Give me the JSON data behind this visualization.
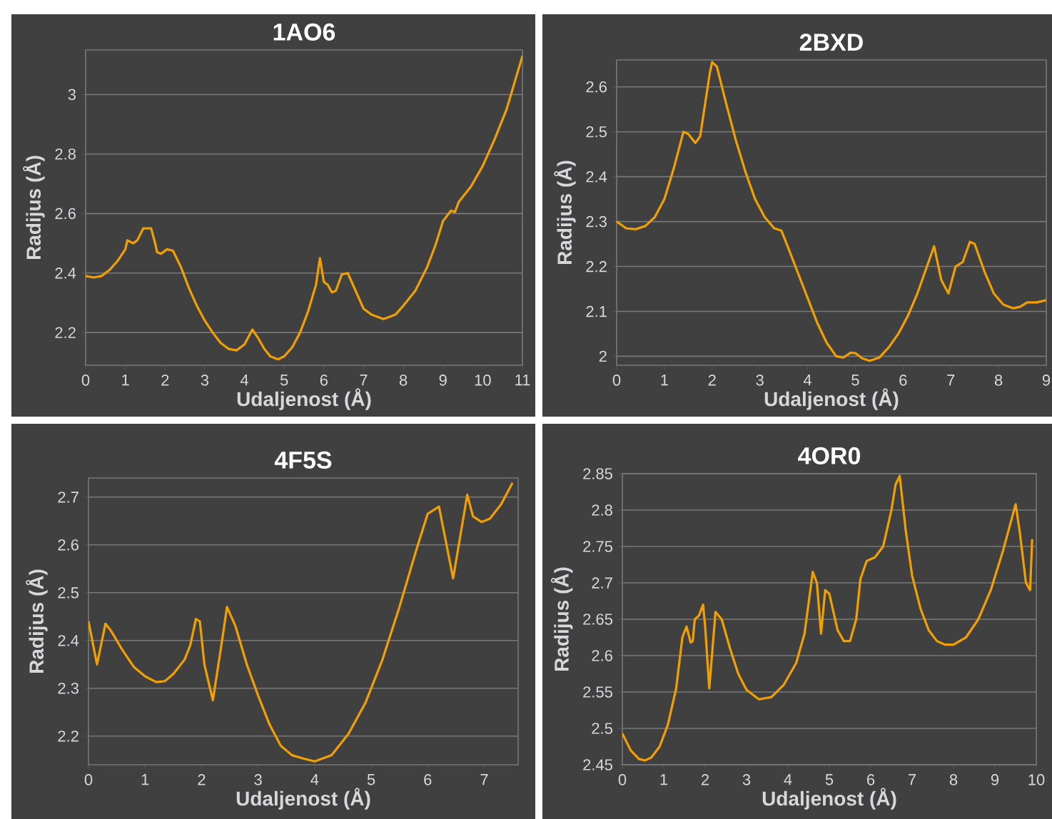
{
  "chart_data": [
    {
      "type": "line",
      "title": "1AO6",
      "xlabel": "Udaljenost (Å)",
      "ylabel": "Radijus (Å)",
      "grid": "y",
      "xlim": [
        0,
        11
      ],
      "ylim": [
        2.09,
        3.15
      ],
      "xticks": [
        0,
        1,
        2,
        3,
        4,
        5,
        6,
        7,
        8,
        9,
        10,
        11
      ],
      "yticks": [
        2.2,
        2.4,
        2.6,
        2.8,
        3
      ],
      "x": [
        0,
        0.2,
        0.4,
        0.6,
        0.8,
        1.0,
        1.05,
        1.2,
        1.3,
        1.45,
        1.65,
        1.75,
        1.8,
        1.9,
        2.05,
        2.2,
        2.4,
        2.6,
        2.8,
        3.0,
        3.2,
        3.4,
        3.6,
        3.8,
        4.0,
        4.2,
        4.35,
        4.5,
        4.65,
        4.85,
        5.0,
        5.2,
        5.4,
        5.6,
        5.8,
        5.9,
        6.0,
        6.1,
        6.2,
        6.3,
        6.45,
        6.6,
        6.8,
        7.0,
        7.2,
        7.5,
        7.8,
        8.0,
        8.3,
        8.6,
        8.8,
        9.0,
        9.2,
        9.3,
        9.4,
        9.7,
        10.0,
        10.3,
        10.6,
        11.0
      ],
      "series": [
        {
          "color": "#f0a000",
          "values": [
            2.39,
            2.385,
            2.39,
            2.41,
            2.44,
            2.48,
            2.51,
            2.5,
            2.51,
            2.55,
            2.55,
            2.5,
            2.47,
            2.465,
            2.48,
            2.475,
            2.42,
            2.35,
            2.29,
            2.24,
            2.2,
            2.165,
            2.145,
            2.14,
            2.16,
            2.21,
            2.18,
            2.145,
            2.12,
            2.11,
            2.12,
            2.15,
            2.2,
            2.27,
            2.36,
            2.45,
            2.37,
            2.36,
            2.335,
            2.34,
            2.395,
            2.4,
            2.34,
            2.28,
            2.26,
            2.245,
            2.26,
            2.29,
            2.34,
            2.42,
            2.49,
            2.575,
            2.61,
            2.605,
            2.64,
            2.69,
            2.76,
            2.85,
            2.95,
            3.13
          ]
        }
      ]
    },
    {
      "type": "line",
      "title": "2BXD",
      "xlabel": "Udaljenost (Å)",
      "ylabel": "Radijus (Å)",
      "grid": "y",
      "xlim": [
        0,
        9
      ],
      "ylim": [
        1.98,
        2.66
      ],
      "xticks": [
        0,
        1,
        2,
        3,
        4,
        5,
        6,
        7,
        8,
        9
      ],
      "yticks": [
        2,
        2.1,
        2.2,
        2.3,
        2.4,
        2.5,
        2.6
      ],
      "x": [
        0,
        0.2,
        0.4,
        0.6,
        0.8,
        1.0,
        1.2,
        1.4,
        1.5,
        1.65,
        1.75,
        1.85,
        1.95,
        2.0,
        2.1,
        2.3,
        2.5,
        2.7,
        2.9,
        3.1,
        3.3,
        3.45,
        3.6,
        3.8,
        4.0,
        4.2,
        4.4,
        4.6,
        4.75,
        4.9,
        5.0,
        5.15,
        5.3,
        5.5,
        5.7,
        5.9,
        6.1,
        6.3,
        6.5,
        6.65,
        6.8,
        6.95,
        7.1,
        7.25,
        7.4,
        7.5,
        7.7,
        7.9,
        8.1,
        8.3,
        8.45,
        8.6,
        8.8,
        9.0
      ],
      "series": [
        {
          "color": "#f0a000",
          "values": [
            2.3,
            2.285,
            2.283,
            2.29,
            2.31,
            2.35,
            2.42,
            2.5,
            2.495,
            2.475,
            2.49,
            2.56,
            2.63,
            2.655,
            2.645,
            2.56,
            2.48,
            2.41,
            2.35,
            2.31,
            2.285,
            2.28,
            2.24,
            2.185,
            2.13,
            2.075,
            2.03,
            2.0,
            1.997,
            2.008,
            2.007,
            1.995,
            1.99,
            1.997,
            2.02,
            2.05,
            2.09,
            2.14,
            2.2,
            2.245,
            2.17,
            2.14,
            2.2,
            2.21,
            2.255,
            2.25,
            2.19,
            2.14,
            2.115,
            2.107,
            2.11,
            2.12,
            2.12,
            2.125
          ]
        }
      ]
    },
    {
      "type": "line",
      "title": "4F5S",
      "xlabel": "Udaljenost (Å)",
      "ylabel": "Radijus (Å)",
      "grid": "y",
      "xlim": [
        0,
        7.6
      ],
      "ylim": [
        2.14,
        2.74
      ],
      "xticks": [
        0,
        1,
        2,
        3,
        4,
        5,
        6,
        7
      ],
      "yticks": [
        2.2,
        2.3,
        2.4,
        2.5,
        2.6,
        2.7
      ],
      "x": [
        0,
        0.15,
        0.3,
        0.4,
        0.6,
        0.8,
        1.0,
        1.2,
        1.35,
        1.5,
        1.7,
        1.8,
        1.9,
        1.97,
        2.05,
        2.2,
        2.35,
        2.45,
        2.6,
        2.8,
        3.0,
        3.2,
        3.4,
        3.6,
        3.8,
        4.0,
        4.3,
        4.6,
        4.9,
        5.2,
        5.5,
        5.8,
        6.0,
        6.2,
        6.3,
        6.45,
        6.55,
        6.7,
        6.8,
        6.95,
        7.1,
        7.3,
        7.5
      ],
      "series": [
        {
          "color": "#f0a000",
          "values": [
            2.44,
            2.35,
            2.435,
            2.42,
            2.38,
            2.345,
            2.325,
            2.313,
            2.315,
            2.33,
            2.36,
            2.39,
            2.445,
            2.44,
            2.35,
            2.275,
            2.39,
            2.47,
            2.43,
            2.35,
            2.285,
            2.225,
            2.18,
            2.16,
            2.153,
            2.147,
            2.16,
            2.205,
            2.27,
            2.36,
            2.47,
            2.59,
            2.665,
            2.68,
            2.62,
            2.53,
            2.6,
            2.705,
            2.66,
            2.648,
            2.655,
            2.685,
            2.73
          ]
        }
      ]
    },
    {
      "type": "line",
      "title": "4OR0",
      "xlabel": "Udaljenost (Å)",
      "ylabel": "Radijus (Å)",
      "grid": "y",
      "xlim": [
        0,
        10
      ],
      "ylim": [
        2.45,
        2.85
      ],
      "xticks": [
        0,
        1,
        2,
        3,
        4,
        5,
        6,
        7,
        8,
        9,
        10
      ],
      "yticks": [
        2.45,
        2.5,
        2.55,
        2.6,
        2.65,
        2.7,
        2.75,
        2.8,
        2.85
      ],
      "x": [
        0,
        0.2,
        0.4,
        0.55,
        0.7,
        0.9,
        1.1,
        1.3,
        1.45,
        1.55,
        1.65,
        1.7,
        1.75,
        1.85,
        1.95,
        2.0,
        2.1,
        2.25,
        2.4,
        2.6,
        2.8,
        3.0,
        3.3,
        3.6,
        3.9,
        4.2,
        4.4,
        4.6,
        4.7,
        4.8,
        4.9,
        5.0,
        5.2,
        5.35,
        5.5,
        5.65,
        5.75,
        5.9,
        6.1,
        6.3,
        6.5,
        6.6,
        6.7,
        6.85,
        7.0,
        7.2,
        7.4,
        7.6,
        7.8,
        8.0,
        8.3,
        8.6,
        8.9,
        9.2,
        9.5,
        9.6,
        9.75,
        9.85,
        9.9
      ],
      "series": [
        {
          "color": "#f0a000",
          "values": [
            2.493,
            2.47,
            2.458,
            2.456,
            2.46,
            2.475,
            2.505,
            2.555,
            2.625,
            2.64,
            2.618,
            2.62,
            2.65,
            2.655,
            2.67,
            2.64,
            2.555,
            2.66,
            2.65,
            2.61,
            2.575,
            2.553,
            2.54,
            2.543,
            2.56,
            2.59,
            2.63,
            2.715,
            2.7,
            2.63,
            2.69,
            2.685,
            2.635,
            2.62,
            2.62,
            2.65,
            2.705,
            2.73,
            2.735,
            2.75,
            2.8,
            2.835,
            2.847,
            2.77,
            2.71,
            2.665,
            2.635,
            2.62,
            2.615,
            2.615,
            2.625,
            2.65,
            2.69,
            2.745,
            2.808,
            2.77,
            2.7,
            2.69,
            2.76
          ]
        }
      ]
    }
  ]
}
